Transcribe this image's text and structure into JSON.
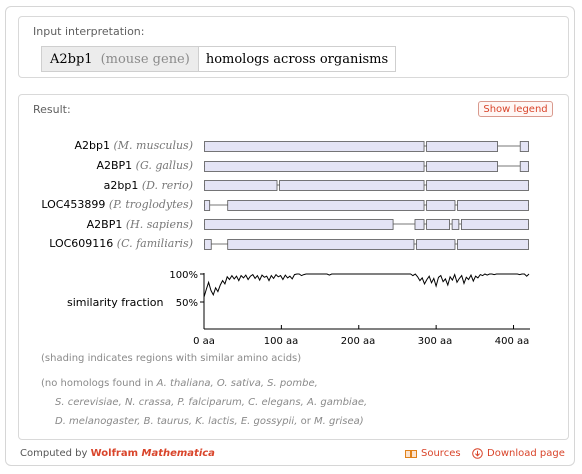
{
  "input_pod": {
    "title": "Input interpretation:",
    "gene": "A2bp1",
    "gene_note": "(mouse gene)",
    "query": "homologs across organisms"
  },
  "result_pod": {
    "title": "Result:",
    "legend_button": "Show legend",
    "genes": [
      {
        "name": "A2bp1",
        "species": "(M. musculus)"
      },
      {
        "name": "A2BP1",
        "species": "(G. gallus)"
      },
      {
        "name": "a2bp1",
        "species": "(D. rerio)"
      },
      {
        "name": "LOC453899",
        "species": "(P. troglodytes)"
      },
      {
        "name": "A2BP1",
        "species": "(H. sapiens)"
      },
      {
        "name": "LOC609116",
        "species": "(C. familiaris)"
      }
    ],
    "similarity_label": "similarity fraction",
    "y_ticks": [
      "100%",
      "50%"
    ],
    "x_ticks": [
      "0 aa",
      "100 aa",
      "200 aa",
      "300 aa",
      "400 aa"
    ],
    "shading_note": "(shading indicates regions with similar amino acids)",
    "no_homologs_prefix": "(no homologs found in",
    "no_homologs_line1": "A. thaliana, O. sativa, S. pombe,",
    "no_homologs_line2": "S. cerevisiae, N. crassa, P. falciparum, C. elegans, A. gambiae,",
    "no_homologs_line3a": "D. melanogaster, B. taurus, K. lactis, E. gossypii,",
    "no_homologs_or": "or",
    "no_homologs_line3b": "M. grisea)"
  },
  "footer": {
    "computed_by": "Computed by",
    "brand": "Wolfram",
    "product": "Mathematica",
    "sources": "Sources",
    "download": "Download page"
  },
  "colors": {
    "accent": "#d9452b",
    "exon_fill": "#e4e4f5",
    "exon_stroke": "#555555"
  },
  "chart_data": {
    "type": "line",
    "x_unit": "aa",
    "xlim": [
      0,
      420
    ],
    "ylim": [
      0,
      1
    ],
    "y_tick_values": [
      1.0,
      0.5
    ],
    "x_tick_values": [
      0,
      100,
      200,
      300,
      400
    ],
    "gene_segments": [
      [
        [
          0,
          285
        ],
        [
          287,
          380
        ],
        [
          408,
          420
        ]
      ],
      [
        [
          0,
          285
        ],
        [
          287,
          380
        ],
        [
          408,
          420
        ]
      ],
      [
        [
          0,
          95
        ],
        [
          97,
          285
        ],
        [
          287,
          420
        ]
      ],
      [
        [
          0,
          8
        ],
        [
          30,
          285
        ],
        [
          287,
          325
        ],
        [
          327,
          420
        ]
      ],
      [
        [
          0,
          245
        ],
        [
          272,
          285
        ],
        [
          287,
          318
        ],
        [
          320,
          330
        ],
        [
          332,
          420
        ]
      ],
      [
        [
          0,
          10
        ],
        [
          30,
          272
        ],
        [
          274,
          325
        ],
        [
          327,
          420
        ]
      ]
    ],
    "similarity": {
      "x": [
        0,
        3,
        6,
        9,
        12,
        15,
        18,
        21,
        24,
        27,
        30,
        33,
        36,
        39,
        42,
        45,
        48,
        51,
        54,
        57,
        60,
        63,
        66,
        69,
        72,
        75,
        78,
        81,
        84,
        87,
        90,
        93,
        96,
        99,
        102,
        105,
        108,
        111,
        114,
        117,
        120,
        123,
        126,
        129,
        132,
        135,
        138,
        141,
        144,
        147,
        150,
        153,
        156,
        159,
        162,
        165,
        168,
        171,
        174,
        177,
        180,
        183,
        186,
        189,
        192,
        195,
        198,
        201,
        204,
        207,
        210,
        213,
        216,
        219,
        222,
        225,
        228,
        231,
        234,
        237,
        240,
        243,
        246,
        249,
        252,
        255,
        258,
        261,
        264,
        267,
        270,
        273,
        276,
        279,
        282,
        285,
        288,
        291,
        294,
        297,
        300,
        303,
        306,
        309,
        312,
        315,
        318,
        321,
        324,
        327,
        330,
        333,
        336,
        339,
        342,
        345,
        348,
        351,
        354,
        357,
        360,
        363,
        366,
        369,
        372,
        375,
        378,
        381,
        384,
        387,
        390,
        393,
        396,
        399,
        402,
        405,
        408,
        411,
        414,
        417,
        420
      ],
      "y": [
        0.58,
        0.72,
        0.85,
        0.7,
        0.62,
        0.75,
        0.68,
        0.8,
        0.88,
        0.82,
        0.95,
        0.9,
        0.97,
        0.91,
        0.96,
        0.88,
        0.97,
        0.93,
        0.98,
        0.9,
        0.96,
        0.99,
        0.92,
        0.97,
        0.89,
        0.98,
        0.94,
        0.96,
        0.88,
        0.97,
        0.92,
        0.99,
        0.95,
        0.97,
        0.9,
        0.98,
        0.93,
        0.96,
        0.91,
        0.99,
        1.0,
        1.0,
        0.97,
        0.99,
        1.0,
        1.0,
        1.0,
        1.0,
        1.0,
        1.0,
        1.0,
        1.0,
        1.0,
        1.0,
        0.98,
        1.0,
        1.0,
        1.0,
        1.0,
        1.0,
        1.0,
        1.0,
        1.0,
        1.0,
        1.0,
        1.0,
        1.0,
        1.0,
        1.0,
        1.0,
        1.0,
        1.0,
        1.0,
        1.0,
        1.0,
        1.0,
        1.0,
        1.0,
        1.0,
        1.0,
        1.0,
        1.0,
        1.0,
        1.0,
        1.0,
        1.0,
        1.0,
        1.0,
        1.0,
        1.0,
        0.97,
        1.0,
        0.95,
        0.88,
        0.93,
        0.82,
        0.9,
        0.96,
        0.84,
        0.92,
        0.78,
        0.94,
        0.97,
        0.86,
        0.91,
        0.8,
        0.95,
        0.89,
        0.99,
        0.85,
        0.92,
        0.97,
        0.83,
        0.94,
        0.9,
        0.98,
        0.87,
        0.96,
        0.93,
        0.99,
        0.97,
        1.0,
        0.98,
        1.0,
        1.0,
        0.99,
        1.0,
        1.0,
        1.0,
        1.0,
        1.0,
        1.0,
        1.0,
        1.0,
        1.0,
        1.0,
        0.99,
        1.0,
        1.0,
        0.96,
        1.0
      ]
    }
  }
}
